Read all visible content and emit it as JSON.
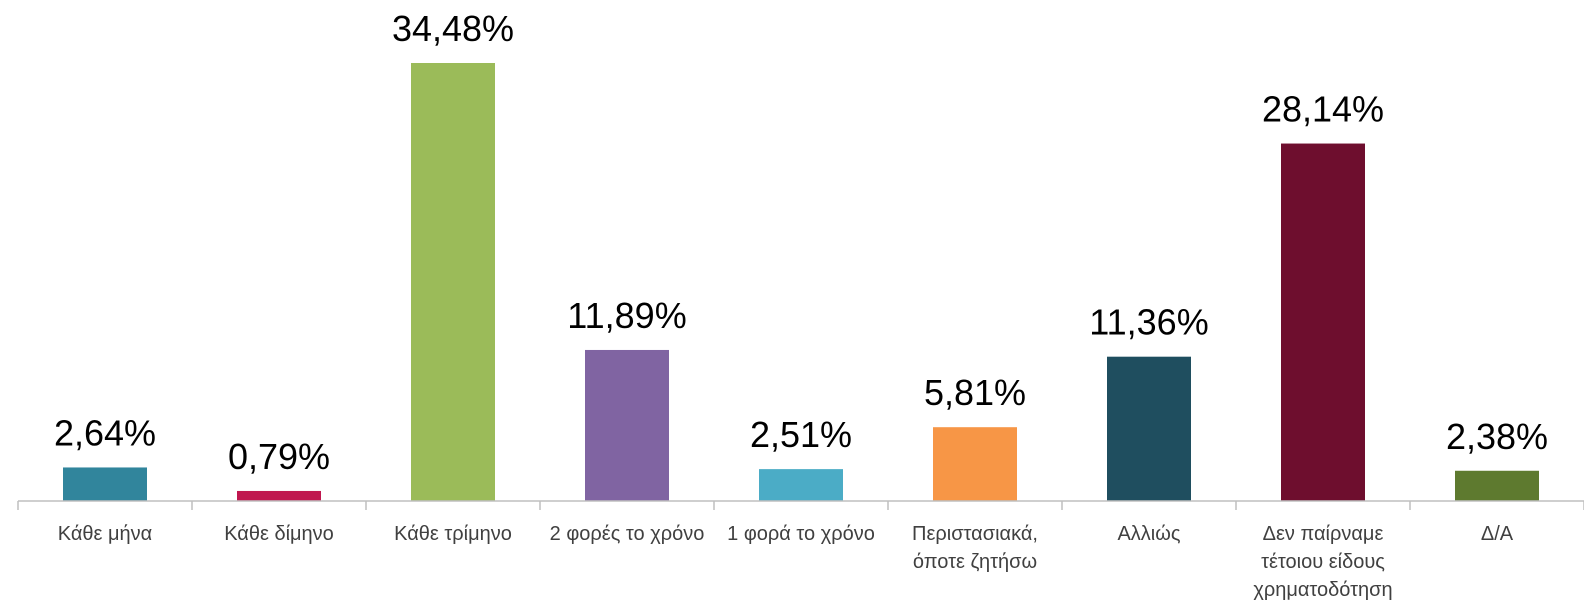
{
  "chart_data": {
    "type": "bar",
    "title": "",
    "xlabel": "",
    "ylabel": "",
    "ylim": [
      0,
      35
    ],
    "grid": false,
    "legend": "none",
    "categories": [
      "Κάθε μήνα",
      "Κάθε δίμηνο",
      "Κάθε τρίμηνο",
      "2 φορές το χρόνο",
      "1 φορά το χρόνο",
      "Περιστασιακά, όποτε ζητήσω",
      "Αλλιώς",
      "Δεν παίρναμε τέτοιου είδους χρηματοδότηση",
      "Δ/Α"
    ],
    "category_lines": [
      [
        "Κάθε μήνα"
      ],
      [
        "Κάθε δίμηνο"
      ],
      [
        "Κάθε τρίμηνο"
      ],
      [
        "2 φορές το χρόνο"
      ],
      [
        "1 φορά το χρόνο"
      ],
      [
        "Περιστασιακά,",
        "όποτε ζητήσω"
      ],
      [
        "Αλλιώς"
      ],
      [
        "Δεν παίρναμε",
        "τέτοιου είδους",
        "χρηματοδότηση"
      ],
      [
        "Δ/Α"
      ]
    ],
    "values": [
      2.64,
      0.79,
      34.48,
      11.89,
      2.51,
      5.81,
      11.36,
      28.14,
      2.38
    ],
    "value_labels": [
      "2,64%",
      "0,79%",
      "34,48%",
      "11,89%",
      "2,51%",
      "5,81%",
      "11,36%",
      "28,14%",
      "2,38%"
    ],
    "colors": [
      "#31859c",
      "#c0174f",
      "#9bbb59",
      "#8064a2",
      "#4bacc6",
      "#f79646",
      "#1f4e5f",
      "#6e0e2e",
      "#5e7a2f"
    ],
    "axis_color": "#bfbfbf"
  }
}
